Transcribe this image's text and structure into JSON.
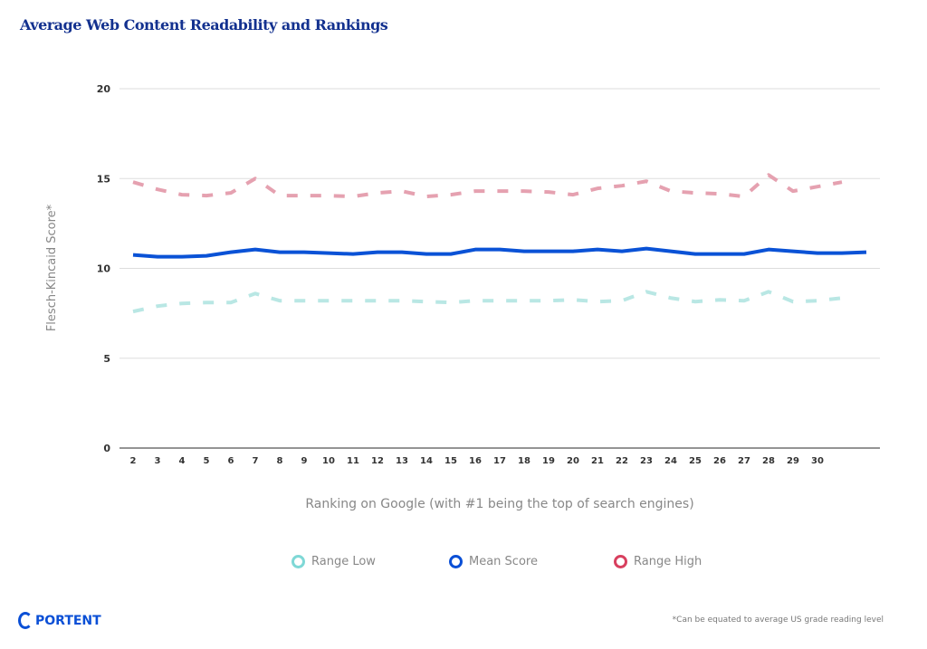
{
  "chart_data": {
    "type": "line",
    "title": "Average Web Content Readability and Rankings",
    "xlabel": "Ranking on Google (with #1 being the top of search engines)",
    "ylabel": "Flesch-Kincaid Score*",
    "ylim": [
      0,
      20
    ],
    "yticks": [
      0,
      5,
      10,
      15,
      20
    ],
    "grid": true,
    "legend_position": "bottom",
    "x": [
      2,
      3,
      4,
      5,
      6,
      7,
      8,
      9,
      10,
      11,
      12,
      13,
      14,
      15,
      16,
      17,
      18,
      19,
      20,
      21,
      22,
      23,
      24,
      25,
      26,
      27,
      28,
      29,
      30,
      31,
      32
    ],
    "tick_labels": [
      "2",
      "3",
      "4",
      "5",
      "6",
      "7",
      "8",
      "9",
      "10",
      "11",
      "12",
      "13",
      "14",
      "15",
      "16",
      "17",
      "18",
      "19",
      "20",
      "21",
      "22",
      "23",
      "24",
      "25",
      "26",
      "27",
      "28",
      "29",
      "30"
    ],
    "series": [
      {
        "name": "Range Low",
        "color": "#b9e7e4",
        "legend_color": "#7fd8d6",
        "dashed": true,
        "values": [
          7.6,
          7.9,
          8.05,
          8.1,
          8.1,
          8.6,
          8.2,
          8.2,
          8.2,
          8.2,
          8.2,
          8.2,
          8.15,
          8.1,
          8.2,
          8.2,
          8.2,
          8.2,
          8.25,
          8.15,
          8.2,
          8.7,
          8.35,
          8.15,
          8.25,
          8.2,
          8.7,
          8.15,
          8.2,
          8.35,
          null
        ]
      },
      {
        "name": "Mean Score",
        "color": "#0a52d6",
        "legend_color": "#0a4fd6",
        "dashed": false,
        "values": [
          10.75,
          10.65,
          10.65,
          10.7,
          10.9,
          11.05,
          10.9,
          10.9,
          10.85,
          10.8,
          10.9,
          10.9,
          10.8,
          10.8,
          11.05,
          11.05,
          10.95,
          10.95,
          10.95,
          11.05,
          10.95,
          11.1,
          10.95,
          10.8,
          10.8,
          10.8,
          11.05,
          10.95,
          10.85,
          10.85,
          10.9
        ]
      },
      {
        "name": "Range High",
        "color": "#e5a1b0",
        "legend_color": "#d8405f",
        "dashed": true,
        "values": [
          14.8,
          14.4,
          14.1,
          14.05,
          14.2,
          15.0,
          14.05,
          14.05,
          14.05,
          14.0,
          14.2,
          14.3,
          14.0,
          14.1,
          14.3,
          14.3,
          14.3,
          14.25,
          14.1,
          14.45,
          14.6,
          14.85,
          14.3,
          14.2,
          14.15,
          14.0,
          15.2,
          14.3,
          14.55,
          14.8,
          null
        ]
      }
    ]
  },
  "brand": "PORTENT",
  "footnote": "*Can be equated to average US grade reading level"
}
